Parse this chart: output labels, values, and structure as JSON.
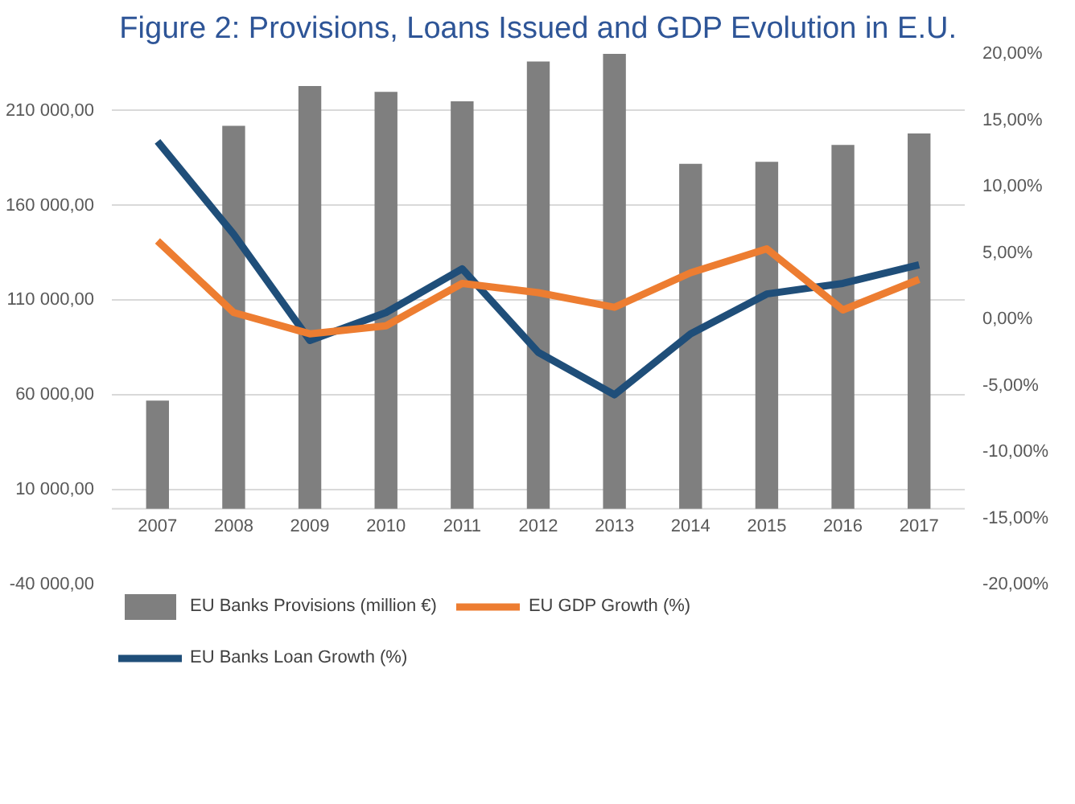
{
  "chart_data": {
    "type": "bar",
    "title": "Figure 2: Provisions, Loans Issued and GDP Evolution in E.U.",
    "categories": [
      "2007",
      "2008",
      "2009",
      "2010",
      "2011",
      "2012",
      "2013",
      "2014",
      "2015",
      "2016",
      "2017"
    ],
    "series": [
      {
        "name": "EU Banks Provisions (million €)",
        "color": "#7f7f7f",
        "values": [
          57000,
          202000,
          223000,
          220000,
          215000,
          236000,
          240000,
          182000,
          183000,
          192000,
          198000
        ]
      },
      {
        "name": "EU Banks Loan Growth (%)",
        "type": "line",
        "axis": "y2",
        "color": "#1f4e79",
        "values": [
          13.4,
          6.4,
          -1.6,
          0.5,
          3.8,
          -2.5,
          -5.7,
          -1.1,
          1.9,
          2.7,
          4.1
        ]
      },
      {
        "name": "EU GDP Growth (%)",
        "type": "line",
        "axis": "y2",
        "color": "#ed7d31",
        "values": [
          5.9,
          0.5,
          -1.1,
          -0.5,
          2.7,
          2.0,
          0.9,
          3.5,
          5.3,
          0.7,
          3.0
        ]
      }
    ],
    "ylim": [
      -40000,
      240000
    ],
    "yticks": [
      {
        "value": -40000,
        "label": "-40 000,00"
      },
      {
        "value": 10000,
        "label": "10 000,00"
      },
      {
        "value": 60000,
        "label": "60 000,00"
      },
      {
        "value": 110000,
        "label": "110 000,00"
      },
      {
        "value": 160000,
        "label": "160 000,00"
      },
      {
        "value": 210000,
        "label": "210 000,00"
      }
    ],
    "y2lim": [
      -20,
      20
    ],
    "y2ticks": [
      {
        "value": -20,
        "label": "-20,00%"
      },
      {
        "value": -15,
        "label": "-15,00%"
      },
      {
        "value": -10,
        "label": "-10,00%"
      },
      {
        "value": -5,
        "label": "-5,00%"
      },
      {
        "value": 0,
        "label": "0,00%"
      },
      {
        "value": 5,
        "label": "5,00%"
      },
      {
        "value": 10,
        "label": "10,00%"
      },
      {
        "value": 15,
        "label": "15,00%"
      },
      {
        "value": 20,
        "label": "20,00%"
      }
    ],
    "grid": "y",
    "legend": "bottom",
    "marker": "none",
    "line_style": "solid"
  }
}
